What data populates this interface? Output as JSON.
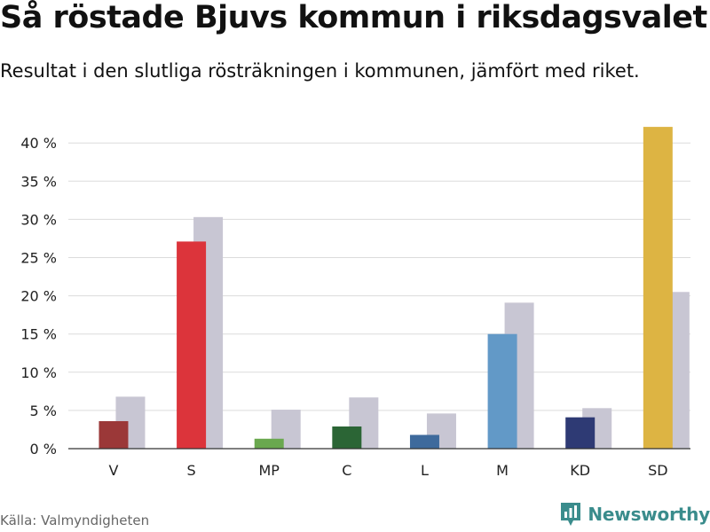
{
  "title": "Så röstade Bjuvs kommun i riksdagsvalet",
  "subtitle": "Resultat i den slutliga rösträkningen i kommunen, jämfört med riket.",
  "source": "Källa: Valmyndigheten",
  "brand": {
    "name": "Newsworthy",
    "color": "#3a8c8c",
    "icon": "bar-chart-logo-icon"
  },
  "chart_data": {
    "type": "bar",
    "categories": [
      "V",
      "S",
      "MP",
      "C",
      "L",
      "M",
      "KD",
      "SD"
    ],
    "series": [
      {
        "values": [
          3.6,
          27.1,
          1.3,
          2.9,
          1.8,
          15.0,
          4.1,
          42.1
        ],
        "colors": [
          "#9b3838",
          "#dc343b",
          "#6aa84f",
          "#2b6535",
          "#3e6a9c",
          "#6299c7",
          "#2e3a74",
          "#ddb443"
        ]
      },
      {
        "values": [
          6.8,
          30.3,
          5.1,
          6.7,
          4.6,
          19.1,
          5.3,
          20.5
        ],
        "color": "#c8c6d3"
      }
    ],
    "yticks": [
      0,
      5,
      10,
      15,
      20,
      25,
      30,
      35,
      40
    ],
    "ytick_labels": [
      "0 %",
      "5 %",
      "10 %",
      "15 %",
      "20 %",
      "25 %",
      "30 %",
      "35 %",
      "40 %"
    ],
    "ylim": [
      0,
      44
    ],
    "xlabel": "",
    "ylabel": "",
    "grid": true,
    "legend": false
  }
}
